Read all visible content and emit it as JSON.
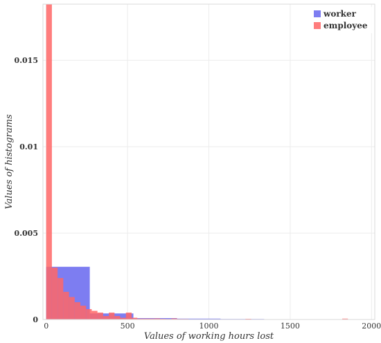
{
  "chart_data": {
    "type": "bar",
    "xlabel": "Values of working hours lost",
    "ylabel": "Values of histograms",
    "xlim": [
      -20,
      2020
    ],
    "ylim": [
      0,
      0.01825
    ],
    "xticks": [
      0,
      500,
      1000,
      1500,
      2000
    ],
    "xtick_labels": [
      "0",
      "500",
      "1000",
      "1500",
      "2000"
    ],
    "yticks": [
      0,
      0.005,
      0.01,
      0.015
    ],
    "ytick_labels": [
      "0",
      "0.005",
      "0.01",
      "0.015"
    ],
    "grid": true,
    "legend_position": "top-right",
    "series": [
      {
        "name": "worker",
        "color": "#6666ee",
        "opacity": 0.85,
        "bins": [
          {
            "x0": 0,
            "x1": 268,
            "value": 0.00305
          },
          {
            "x0": 268,
            "x1": 536,
            "value": 0.00035
          },
          {
            "x0": 536,
            "x1": 804,
            "value": 8e-05
          },
          {
            "x0": 804,
            "x1": 1072,
            "value": 5e-05
          },
          {
            "x0": 1072,
            "x1": 1340,
            "value": 3e-05
          },
          {
            "x0": 1340,
            "x1": 1608,
            "value": 2e-05
          },
          {
            "x0": 1608,
            "x1": 1876,
            "value": 1e-05
          }
        ]
      },
      {
        "name": "employee",
        "color": "#ff6666",
        "opacity": 0.85,
        "bins": [
          {
            "x0": 0,
            "x1": 35,
            "value": 0.0183
          },
          {
            "x0": 35,
            "x1": 70,
            "value": 0.003
          },
          {
            "x0": 70,
            "x1": 105,
            "value": 0.0024
          },
          {
            "x0": 105,
            "x1": 140,
            "value": 0.0016
          },
          {
            "x0": 140,
            "x1": 175,
            "value": 0.0013
          },
          {
            "x0": 175,
            "x1": 210,
            "value": 0.001
          },
          {
            "x0": 210,
            "x1": 245,
            "value": 0.0008
          },
          {
            "x0": 245,
            "x1": 280,
            "value": 0.0006
          },
          {
            "x0": 280,
            "x1": 315,
            "value": 0.0005
          },
          {
            "x0": 315,
            "x1": 350,
            "value": 0.0004
          },
          {
            "x0": 350,
            "x1": 385,
            "value": 0.0002
          },
          {
            "x0": 385,
            "x1": 420,
            "value": 0.0004
          },
          {
            "x0": 420,
            "x1": 455,
            "value": 0.0002
          },
          {
            "x0": 455,
            "x1": 490,
            "value": 0.0001
          },
          {
            "x0": 490,
            "x1": 525,
            "value": 0.0004
          },
          {
            "x0": 525,
            "x1": 560,
            "value": 0.0001
          },
          {
            "x0": 560,
            "x1": 595,
            "value": 5e-05
          },
          {
            "x0": 595,
            "x1": 630,
            "value": 5e-05
          },
          {
            "x0": 630,
            "x1": 665,
            "value": 5e-05
          },
          {
            "x0": 665,
            "x1": 700,
            "value": 6e-05
          },
          {
            "x0": 700,
            "x1": 735,
            "value": 4e-05
          },
          {
            "x0": 735,
            "x1": 770,
            "value": 3e-05
          },
          {
            "x0": 770,
            "x1": 805,
            "value": 6e-05
          },
          {
            "x0": 805,
            "x1": 840,
            "value": 3e-05
          },
          {
            "x0": 840,
            "x1": 875,
            "value": 3e-05
          },
          {
            "x0": 875,
            "x1": 910,
            "value": 2e-05
          },
          {
            "x0": 910,
            "x1": 945,
            "value": 2e-05
          },
          {
            "x0": 945,
            "x1": 980,
            "value": 2e-05
          },
          {
            "x0": 980,
            "x1": 1015,
            "value": 1e-05
          },
          {
            "x0": 1015,
            "x1": 1050,
            "value": 2e-05
          },
          {
            "x0": 1050,
            "x1": 1085,
            "value": 1e-05
          },
          {
            "x0": 1085,
            "x1": 1120,
            "value": 2e-05
          },
          {
            "x0": 1225,
            "x1": 1260,
            "value": 4e-05
          },
          {
            "x0": 1330,
            "x1": 1365,
            "value": 1e-05
          },
          {
            "x0": 1820,
            "x1": 1855,
            "value": 5e-05
          }
        ]
      }
    ]
  }
}
